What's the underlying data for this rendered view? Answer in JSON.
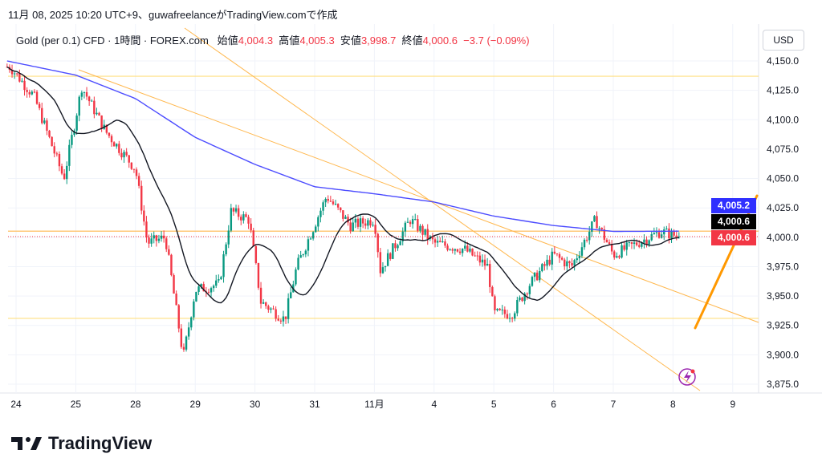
{
  "caption": "11月 08, 2025 10:20 UTC+9、guwafreelanceがTradingView.comで作成",
  "legend": {
    "symbol": "Gold (per 0.1) CFD · 1時間 · FOREX.com",
    "open_label": "始値",
    "open": "4,004.3",
    "high_label": "高値",
    "high": "4,005.3",
    "low_label": "安値",
    "low": "3,998.7",
    "close_label": "終値",
    "close": "4,000.6",
    "change": "−3.7 (−0.09%)"
  },
  "currency": "USD",
  "price_labels": {
    "ma200": "4,005.2",
    "ma20": "4,000.6",
    "last": "4,000.6"
  },
  "colors": {
    "up": "#089981",
    "down": "#f23645",
    "ma200": "#4c4cff",
    "ma20": "#131722",
    "trend": "#ffb74d",
    "hline": "#ffe082",
    "arrow": "#ff9800"
  },
  "brand": "TradingView",
  "chart_data": {
    "type": "candlestick",
    "y_ticks": [
      "4,150.0",
      "4,125.0",
      "4,100.0",
      "4,075.0",
      "4,050.0",
      "4,025.0",
      "4,000.0",
      "3,975.0",
      "3,950.0",
      "3,925.0",
      "3,900.0",
      "3,875.0"
    ],
    "y_tick_values": [
      4150,
      4125,
      4100,
      4075,
      4050,
      4025,
      4000,
      3975,
      3950,
      3925,
      3900,
      3875
    ],
    "x_ticks": [
      "24",
      "25",
      "28",
      "29",
      "30",
      "31",
      "11月",
      "4",
      "5",
      "6",
      "7",
      "8",
      "9"
    ],
    "price_path": [
      [
        -0.1,
        4145
      ],
      [
        0.3,
        4120
      ],
      [
        0.8,
        4050
      ],
      [
        1.1,
        4128
      ],
      [
        1.5,
        4090
      ],
      [
        2.0,
        4058
      ],
      [
        2.2,
        3995
      ],
      [
        2.5,
        4000
      ],
      [
        2.8,
        3898
      ],
      [
        3.0,
        3955
      ],
      [
        3.4,
        3960
      ],
      [
        3.6,
        4022
      ],
      [
        3.9,
        4015
      ],
      [
        4.1,
        3945
      ],
      [
        4.5,
        3930
      ],
      [
        4.7,
        3975
      ],
      [
        5.2,
        4035
      ],
      [
        5.6,
        4010
      ],
      [
        6.0,
        4015
      ],
      [
        6.1,
        3972
      ],
      [
        6.6,
        4015
      ],
      [
        7.0,
        3995
      ],
      [
        7.5,
        3990
      ],
      [
        7.9,
        3975
      ],
      [
        8.0,
        3935
      ],
      [
        8.3,
        3935
      ],
      [
        8.6,
        3960
      ],
      [
        9.0,
        3985
      ],
      [
        9.3,
        3975
      ],
      [
        9.7,
        4015
      ],
      [
        10.0,
        3985
      ],
      [
        10.4,
        3995
      ],
      [
        10.8,
        4005
      ],
      [
        11.1,
        4000.6
      ]
    ],
    "ma200_path": [
      [
        -0.15,
        4150
      ],
      [
        1.0,
        4138
      ],
      [
        2.0,
        4118
      ],
      [
        3.0,
        4085
      ],
      [
        4.0,
        4062
      ],
      [
        5.0,
        4043
      ],
      [
        6.0,
        4037
      ],
      [
        7.0,
        4030
      ],
      [
        8.0,
        4018
      ],
      [
        9.0,
        4010
      ],
      [
        10.0,
        4005
      ],
      [
        11.1,
        4005.2
      ]
    ],
    "horizontal_levels": [
      4137,
      4005.2,
      3931
    ],
    "last_price": 4000.6
  }
}
